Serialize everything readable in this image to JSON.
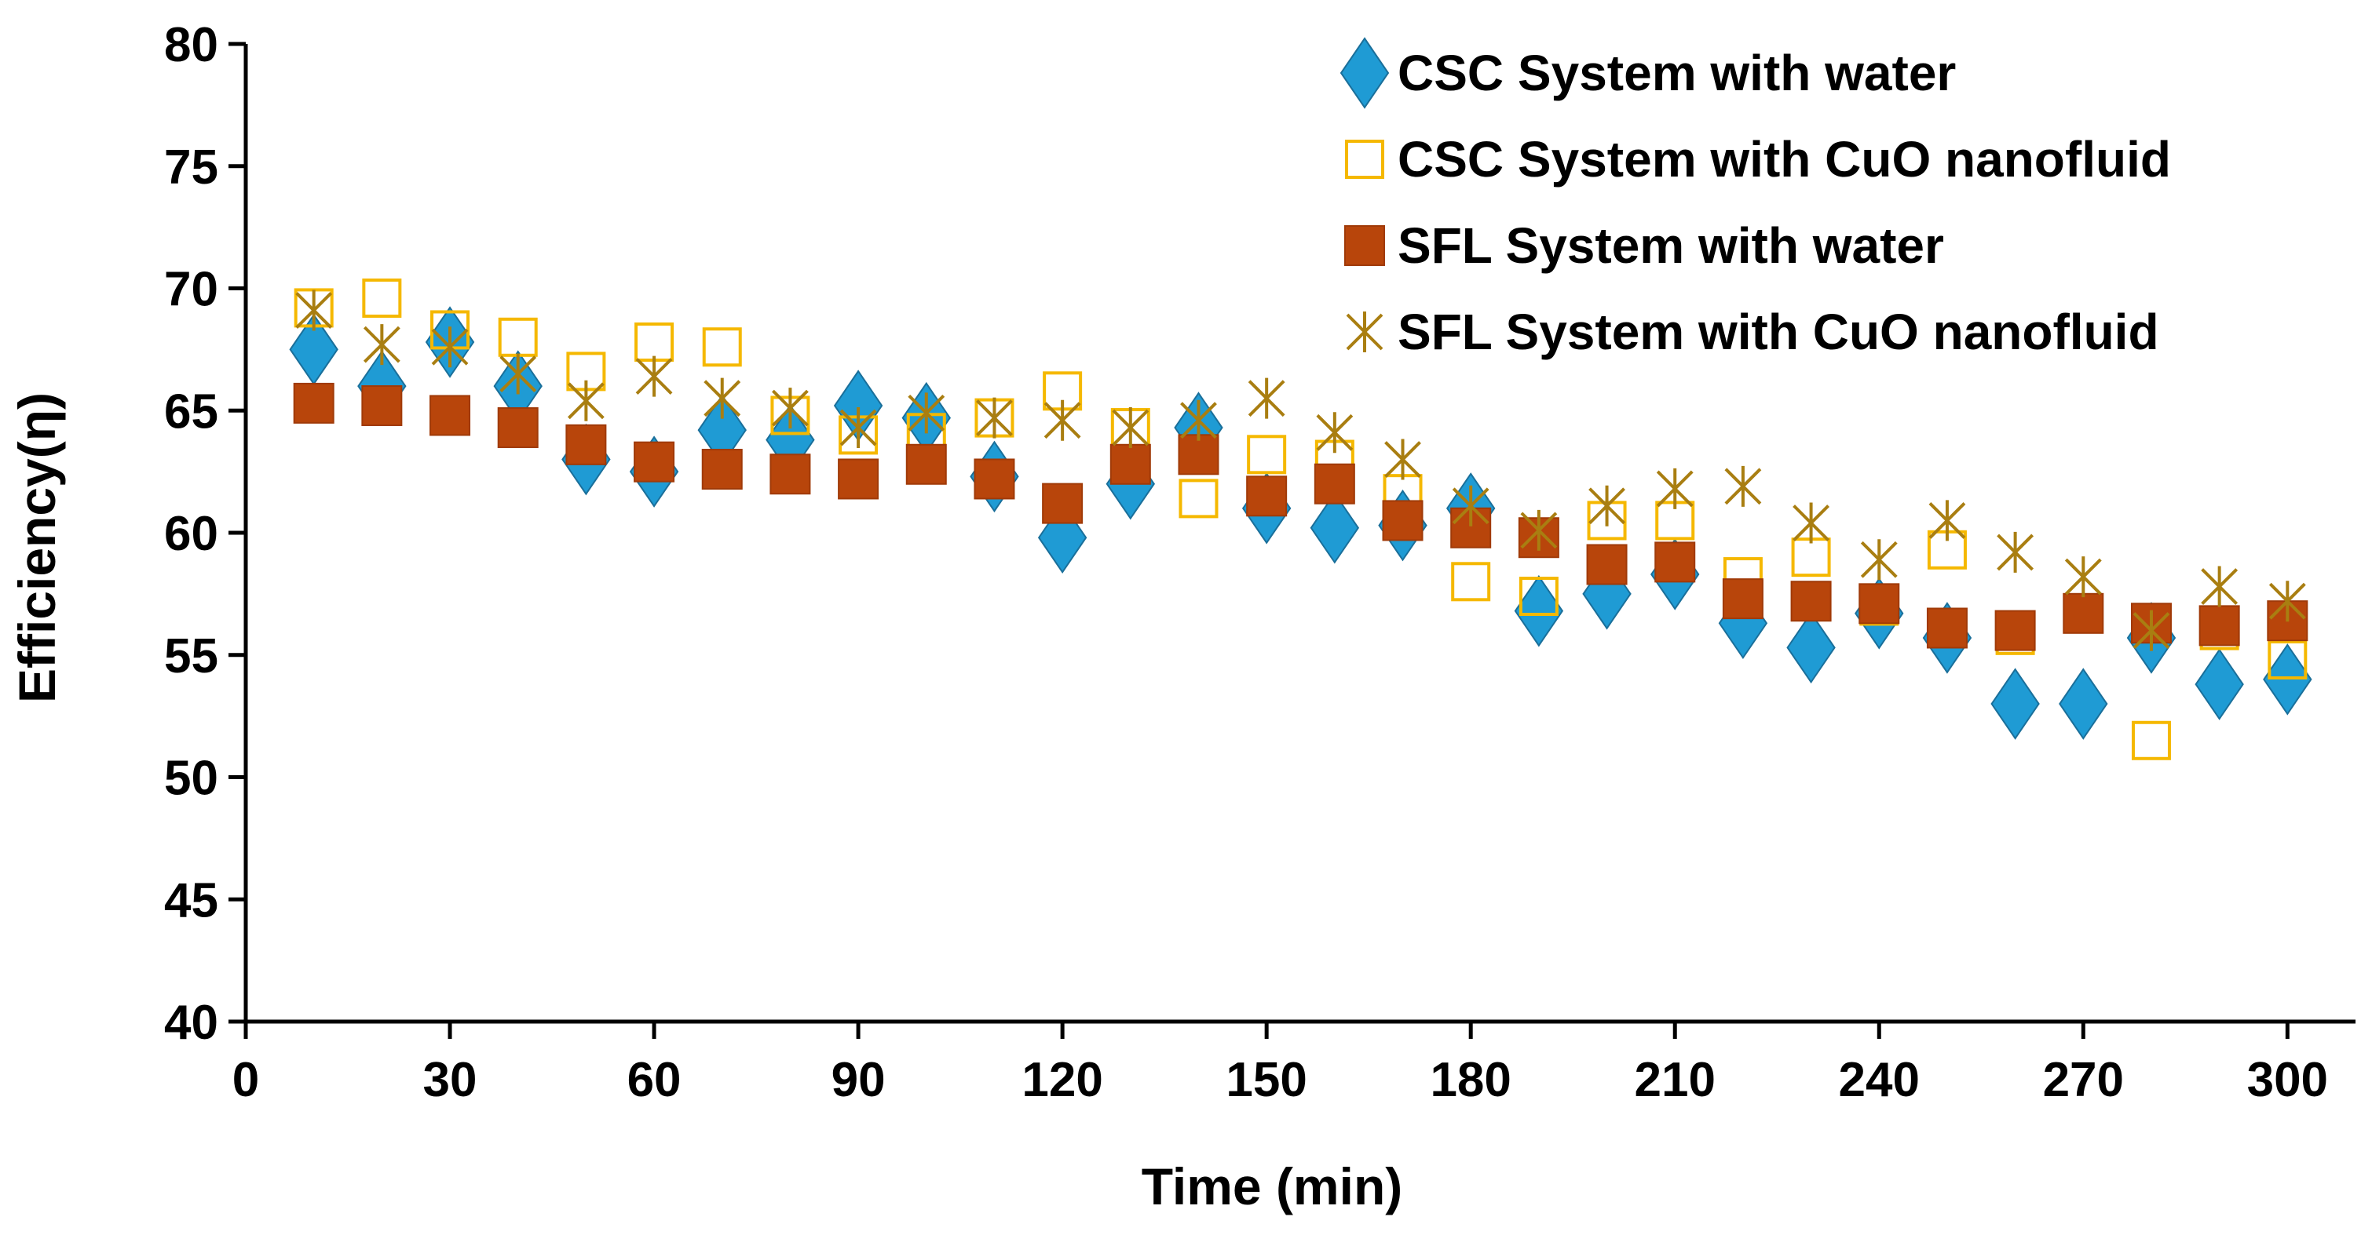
{
  "chart_data": {
    "type": "scatter",
    "title": "",
    "xlabel": "Time (min)",
    "ylabel": "Efficiency(η)",
    "xlim": [
      0,
      310
    ],
    "ylim": [
      40,
      80
    ],
    "x_ticks": [
      0,
      30,
      60,
      90,
      120,
      150,
      180,
      210,
      240,
      270,
      300
    ],
    "y_ticks": [
      40,
      45,
      50,
      55,
      60,
      65,
      70,
      75,
      80
    ],
    "grid": false,
    "legend_position": "top-right",
    "x": [
      10,
      20,
      30,
      40,
      50,
      60,
      70,
      80,
      90,
      100,
      110,
      120,
      130,
      140,
      150,
      160,
      170,
      180,
      190,
      200,
      210,
      220,
      230,
      240,
      250,
      260,
      270,
      280,
      290,
      300
    ],
    "series": [
      {
        "name": "CSC System with water",
        "marker": "diamond",
        "color": "#1f9bd4",
        "stroke": "#1a6f9a",
        "values": [
          67.5,
          66.0,
          67.8,
          66.0,
          63.0,
          62.5,
          64.2,
          63.8,
          65.2,
          64.7,
          62.3,
          59.8,
          62.0,
          64.3,
          61.0,
          60.2,
          60.3,
          61.0,
          56.8,
          57.5,
          58.3,
          56.3,
          55.3,
          56.7,
          55.7,
          53.0,
          53.0,
          55.7,
          53.8,
          54.0
        ]
      },
      {
        "name": "CSC System with CuO nanofluid",
        "marker": "open-square",
        "color": "#f5b800",
        "stroke": "#f5b800",
        "values": [
          69.2,
          69.6,
          68.3,
          68.0,
          66.6,
          67.8,
          67.6,
          64.8,
          64.0,
          64.1,
          64.7,
          65.8,
          64.3,
          61.4,
          63.2,
          63.0,
          61.6,
          58.0,
          57.4,
          60.5,
          60.5,
          58.2,
          59.0,
          57.0,
          59.3,
          55.8,
          56.7,
          51.5,
          56.0,
          54.8
        ]
      },
      {
        "name": "SFL System  with water",
        "marker": "filled-square",
        "color": "#b8450b",
        "stroke": "#a03a08",
        "values": [
          65.3,
          65.2,
          64.8,
          64.3,
          63.6,
          62.9,
          62.6,
          62.4,
          62.2,
          62.8,
          62.2,
          61.2,
          62.8,
          63.2,
          61.5,
          62.0,
          60.5,
          60.2,
          59.8,
          58.7,
          58.8,
          57.3,
          57.2,
          57.1,
          56.1,
          56.0,
          56.7,
          56.3,
          56.2,
          56.4
        ]
      },
      {
        "name": "SFL System with CuO nanofluid",
        "marker": "asterisk-x",
        "color": "#a97e11",
        "stroke": "#a97e11",
        "values": [
          69.1,
          67.7,
          67.6,
          66.5,
          65.4,
          66.4,
          65.5,
          65.1,
          64.3,
          64.9,
          64.7,
          64.6,
          64.3,
          64.6,
          65.5,
          64.1,
          63.0,
          61.1,
          60.1,
          61.1,
          61.8,
          61.9,
          60.4,
          58.9,
          60.5,
          59.2,
          58.2,
          56.0,
          57.8,
          57.2
        ]
      }
    ]
  }
}
